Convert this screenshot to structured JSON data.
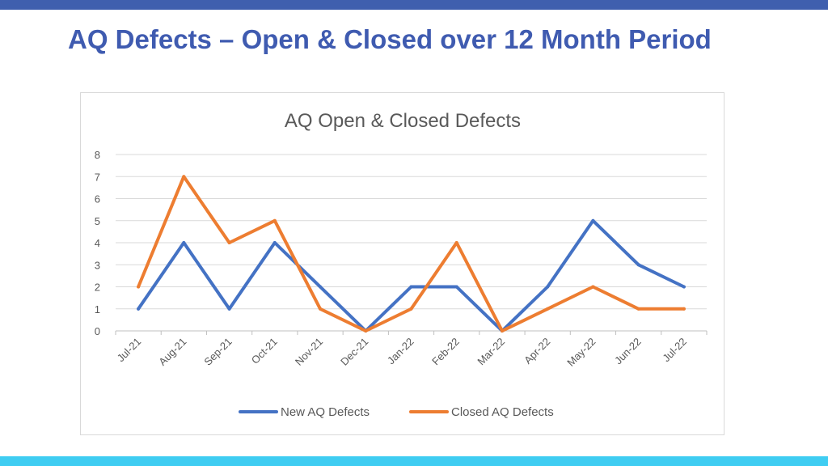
{
  "slide": {
    "title": "AQ Defects – Open & Closed over 12 Month Period",
    "colors": {
      "top_bar": "#3f5fae",
      "bottom_bar": "#3fcdf2",
      "title": "#3f5bb0"
    }
  },
  "chart_data": {
    "type": "line",
    "title": "AQ Open & Closed  Defects",
    "xlabel": "",
    "ylabel": "",
    "categories": [
      "Jul-21",
      "Aug-21",
      "Sep-21",
      "Oct-21",
      "Nov-21",
      "Dec-21",
      "Jan-22",
      "Feb-22",
      "Mar-22",
      "Apr-22",
      "May-22",
      "Jun-22",
      "Jul-22"
    ],
    "ylim": [
      0,
      8
    ],
    "yticks": [
      0,
      1,
      2,
      3,
      4,
      5,
      6,
      7,
      8
    ],
    "grid": true,
    "legend": "bottom",
    "series": [
      {
        "name": "New AQ Defects",
        "color": "#4472c4",
        "values": [
          1,
          4,
          1,
          4,
          2,
          0,
          2,
          2,
          0,
          2,
          5,
          3,
          2
        ]
      },
      {
        "name": "Closed AQ Defects",
        "color": "#ed7d31",
        "values": [
          2,
          7,
          4,
          5,
          1,
          0,
          1,
          4,
          0,
          1,
          2,
          1,
          1
        ]
      }
    ]
  }
}
